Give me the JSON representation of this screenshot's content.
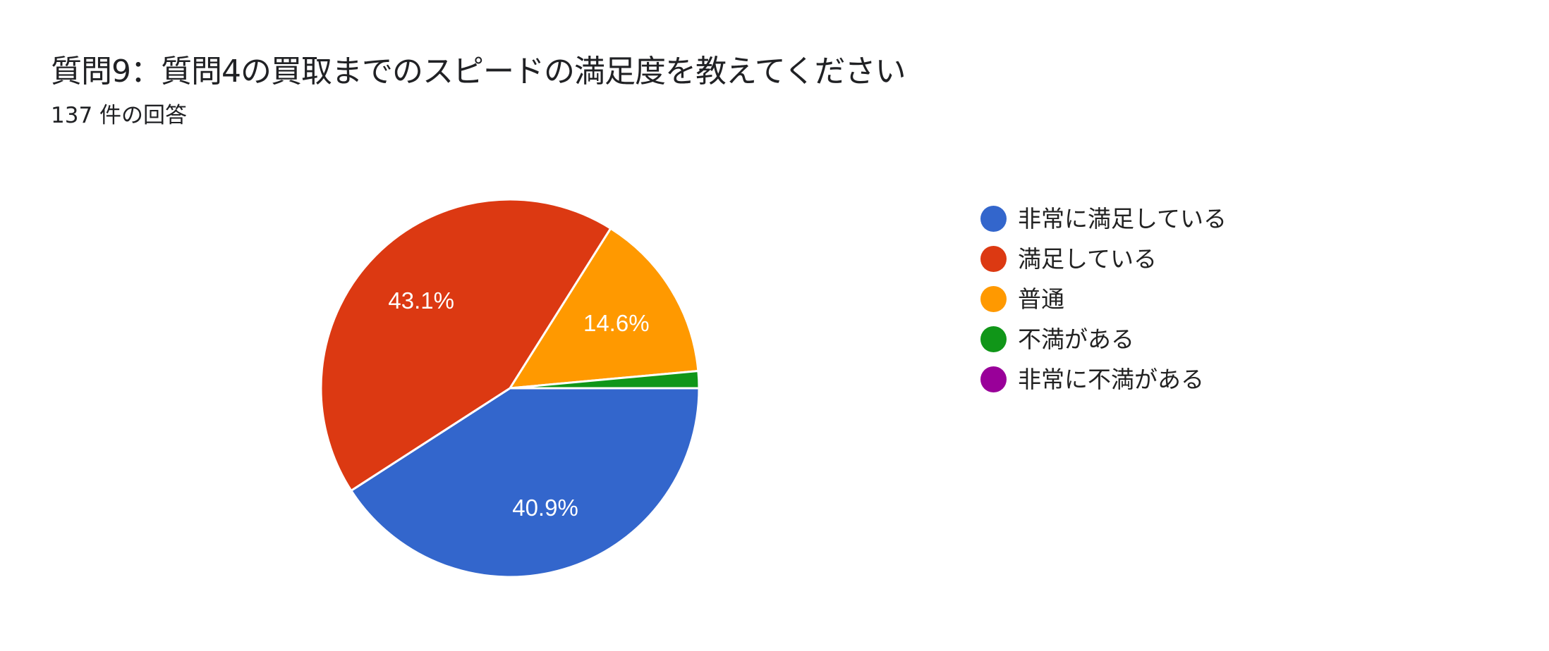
{
  "header": {
    "title": "質問9：質問4の買取までのスピードの満足度を教えてください",
    "response_count": "137 件の回答"
  },
  "chart_data": {
    "type": "pie",
    "title": "質問9：質問4の買取までのスピードの満足度を教えてください",
    "subtitle": "137 件の回答",
    "total_responses": 137,
    "categories": [
      "非常に満足している",
      "満足している",
      "普通",
      "不満がある",
      "非常に不満がある"
    ],
    "values": [
      56,
      59,
      20,
      2,
      0
    ],
    "percentages": [
      40.9,
      43.1,
      14.6,
      1.5,
      0
    ],
    "colors": [
      "#3366cc",
      "#dc3912",
      "#ff9900",
      "#109618",
      "#990099"
    ],
    "slice_labels": [
      "40.9%",
      "43.1%",
      "14.6%",
      "",
      ""
    ],
    "legend_position": "right",
    "start_angle": "3 o'clock, clockwise"
  },
  "legend": {
    "items": [
      {
        "label": "非常に満足している",
        "color": "#3366cc"
      },
      {
        "label": "満足している",
        "color": "#dc3912"
      },
      {
        "label": "普通",
        "color": "#ff9900"
      },
      {
        "label": "不満がある",
        "color": "#109618"
      },
      {
        "label": "非常に不満がある",
        "color": "#990099"
      }
    ]
  }
}
